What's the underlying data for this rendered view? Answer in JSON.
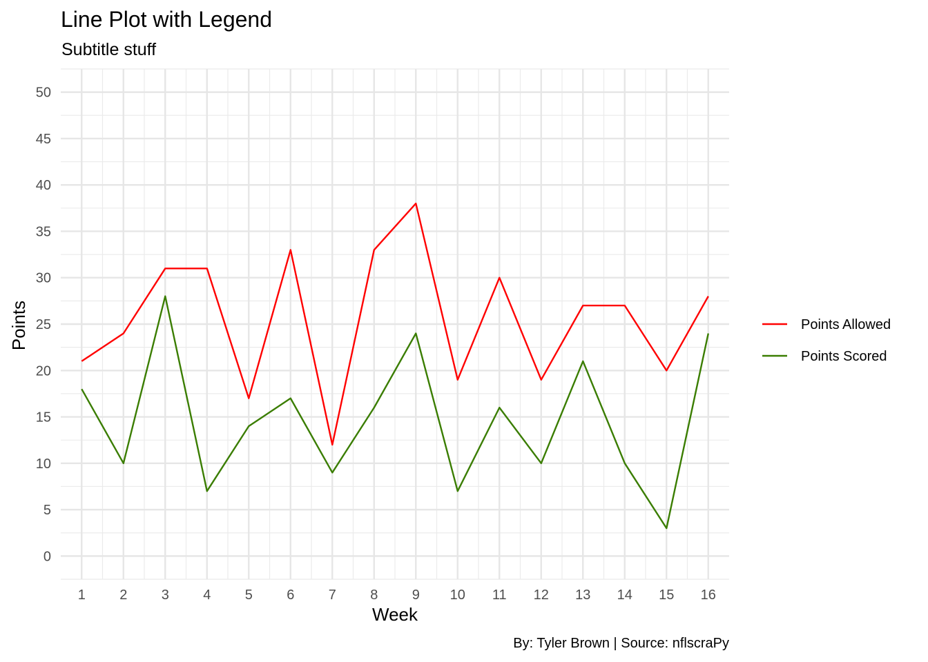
{
  "chart_data": {
    "type": "line",
    "title": "Line Plot with Legend",
    "subtitle": "Subtitle stuff",
    "caption": "By: Tyler Brown | Source: nflscraPy",
    "xlabel": "Week",
    "ylabel": "Points",
    "x": [
      1,
      2,
      3,
      4,
      5,
      6,
      7,
      8,
      9,
      10,
      11,
      12,
      13,
      14,
      15,
      16
    ],
    "xlim": [
      0.5,
      16.5
    ],
    "ylim": [
      -2.5,
      52.5
    ],
    "yticks": [
      0,
      5,
      10,
      15,
      20,
      25,
      30,
      35,
      40,
      45,
      50
    ],
    "grid": true,
    "legend_position": "right",
    "series": [
      {
        "name": "Points Allowed",
        "color": "#ff0000",
        "values": [
          21,
          24,
          31,
          31,
          17,
          33,
          12,
          33,
          38,
          19,
          30,
          19,
          27,
          27,
          20,
          28
        ]
      },
      {
        "name": "Points Scored",
        "color": "#3a7d00",
        "values": [
          18,
          10,
          28,
          7,
          14,
          17,
          9,
          16,
          24,
          7,
          16,
          10,
          21,
          10,
          3,
          24
        ]
      }
    ]
  }
}
